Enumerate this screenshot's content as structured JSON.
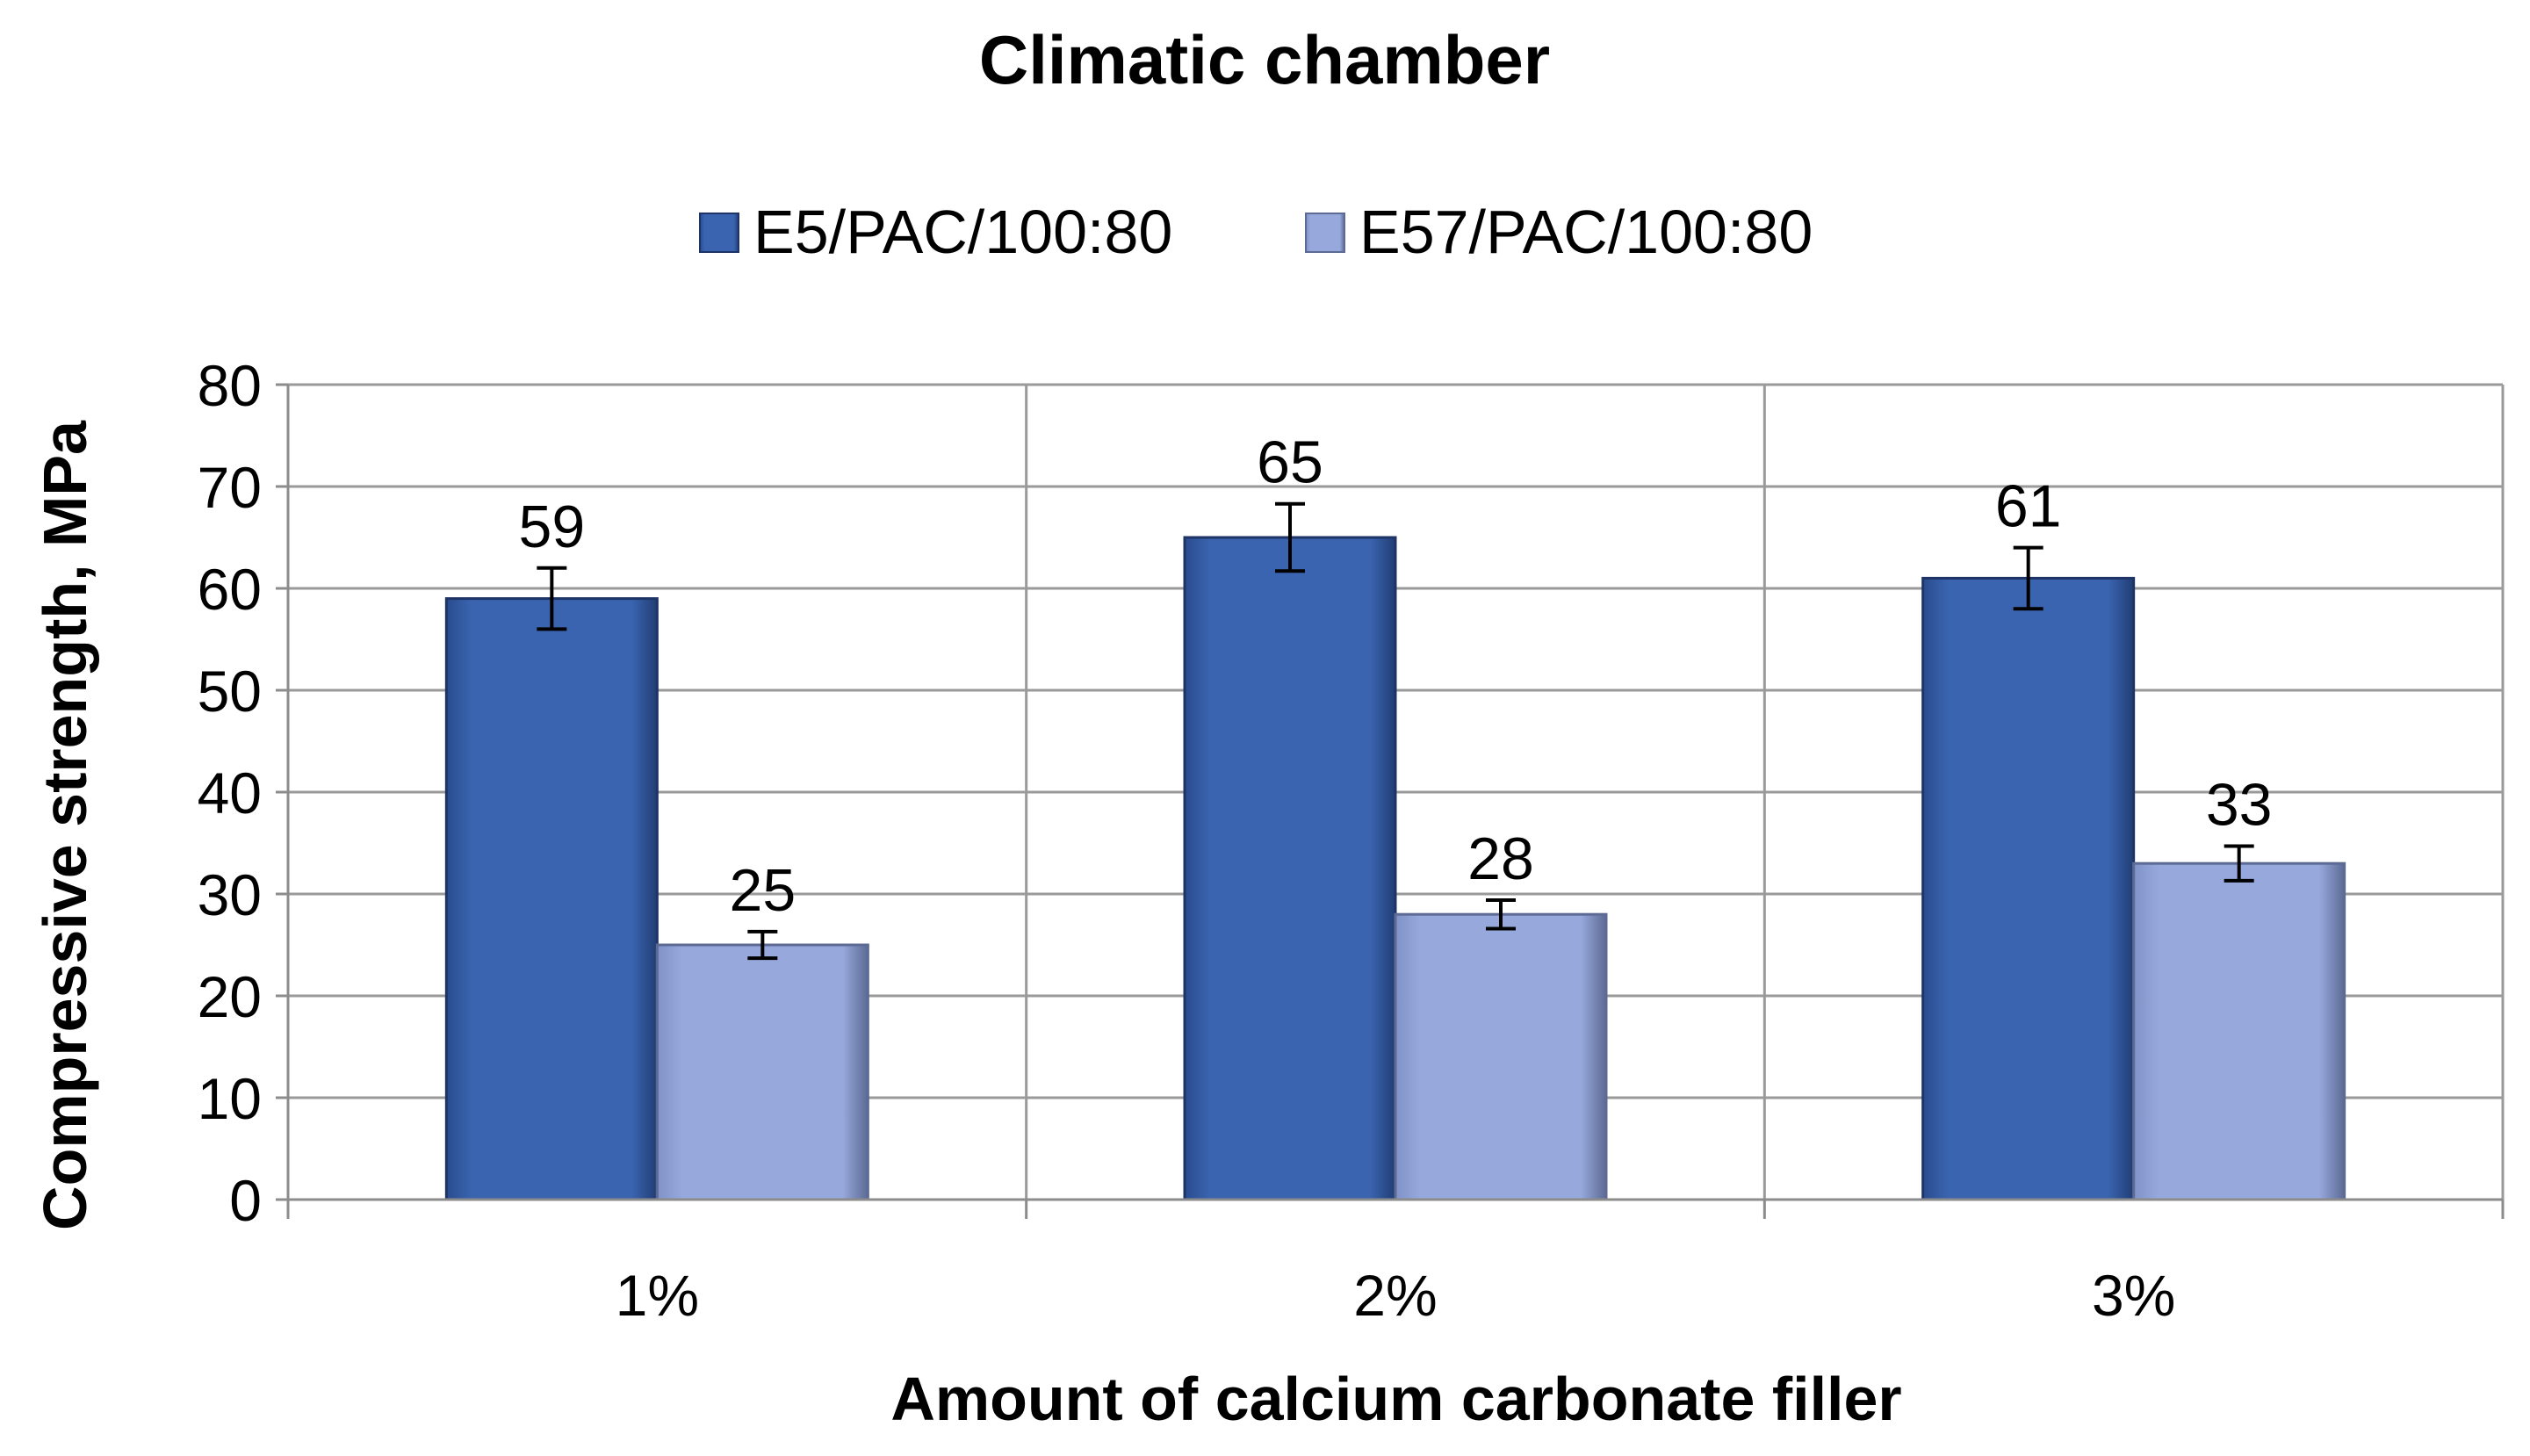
{
  "chart_data": {
    "type": "bar",
    "title": "Climatic chamber",
    "xlabel": "Amount of calcium carbonate filler",
    "ylabel": "Compressive strength, MPa",
    "categories": [
      "1%",
      "2%",
      "3%"
    ],
    "ylim": [
      0,
      80
    ],
    "yticks": [
      0,
      10,
      20,
      30,
      40,
      50,
      60,
      70,
      80
    ],
    "grid": true,
    "legend_position": "top",
    "series": [
      {
        "name": "E5/PAC/100:80",
        "values": [
          59,
          65,
          61
        ],
        "error": [
          3,
          3.3,
          3
        ],
        "color": "#3A64B0"
      },
      {
        "name": "E57/PAC/100:80",
        "values": [
          25,
          28,
          33
        ],
        "error": [
          1.3,
          1.4,
          1.7
        ],
        "color": "#97A8DC"
      }
    ]
  }
}
